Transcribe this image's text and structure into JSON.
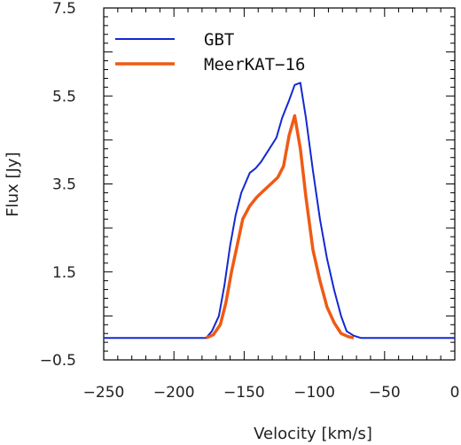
{
  "chart_data": {
    "type": "line",
    "xlabel": "Velocity [km/s]",
    "ylabel": "Flux [Jy]",
    "xlim": [
      -250,
      0
    ],
    "ylim": [
      -0.5,
      7.5
    ],
    "x_ticks": [
      -250,
      -200,
      -150,
      -100,
      -50,
      0
    ],
    "x_tick_labels": [
      "−250",
      "−200",
      "−150",
      "−100",
      "−50",
      "0"
    ],
    "y_ticks": [
      -0.5,
      1.5,
      3.5,
      5.5,
      7.5
    ],
    "y_tick_labels": [
      "−0.5",
      "1.5",
      "3.5",
      "5.5",
      "7.5"
    ],
    "grid": false,
    "legend_position": "top-left",
    "series": [
      {
        "name": "GBT",
        "color": "#1428d2",
        "x": [
          -250,
          -177,
          -173,
          -168,
          -164,
          -160,
          -156,
          -152,
          -146,
          -142,
          -138,
          -132,
          -127,
          -123,
          -118,
          -114,
          -110,
          -106,
          -101,
          -96,
          -91,
          -86,
          -81,
          -77,
          -72,
          -67,
          -60,
          0
        ],
        "y": [
          0.0,
          0.0,
          0.15,
          0.5,
          1.2,
          2.1,
          2.8,
          3.3,
          3.75,
          3.85,
          4.0,
          4.3,
          4.55,
          5.0,
          5.4,
          5.75,
          5.8,
          5.0,
          3.8,
          2.7,
          1.8,
          1.1,
          0.5,
          0.15,
          0.05,
          0.0,
          0.0,
          0.0
        ]
      },
      {
        "name": "MeerKAT−16",
        "color": "#f05a14",
        "x": [
          -177,
          -172,
          -167,
          -163,
          -159,
          -155,
          -151,
          -146,
          -141,
          -136,
          -131,
          -126,
          -122,
          -118,
          -114,
          -110,
          -106,
          -101,
          -96,
          -91,
          -86,
          -81,
          -76,
          -72
        ],
        "y": [
          0.0,
          0.07,
          0.3,
          0.8,
          1.5,
          2.1,
          2.7,
          3.0,
          3.2,
          3.35,
          3.5,
          3.65,
          3.9,
          4.6,
          5.05,
          4.3,
          3.2,
          2.0,
          1.3,
          0.7,
          0.35,
          0.1,
          0.03,
          0.0
        ]
      }
    ]
  }
}
